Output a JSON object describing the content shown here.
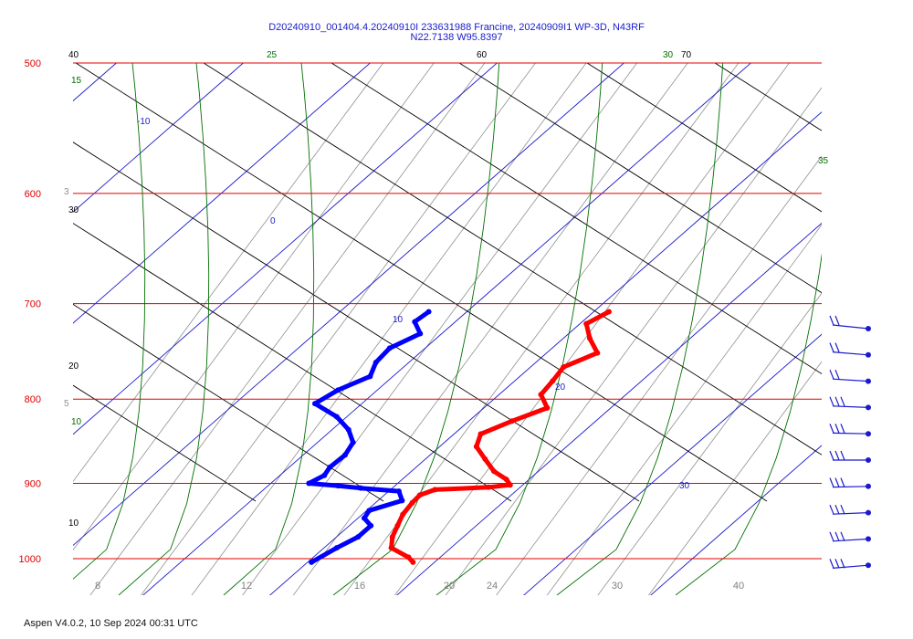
{
  "title_line1": "D20240910_001404.4.20240910I 233631988 Francine, 20240909I1 WP-3D, N43RF",
  "title_line2": "N22.7138 W95.8397",
  "footer": "Aspen V4.0.2, 10 Sep 2024  00:31 UTC",
  "colors": {
    "isobar": "#e00000",
    "isotherm": "#1a1acc",
    "dry_adiabat": "#000000",
    "moist_adiabat": "#007000",
    "mixing_ratio": "#909090",
    "temperature": "#ff0000",
    "dewpoint": "#0000ff",
    "wind_barb": "#1a1acc"
  },
  "chart_data": {
    "type": "skew-t log-p",
    "pressure_range_hpa": [
      1000,
      500
    ],
    "pressure_ticks": [
      "500",
      "600",
      "700",
      "800",
      "900",
      "1000"
    ],
    "bottom_tick_labels": [
      "8",
      "12",
      "16",
      "20",
      "24",
      "30",
      "40"
    ],
    "isotherm_labels": [
      "-10",
      "0",
      "10",
      "20",
      "30"
    ],
    "dry_adiabat_labels": [
      "40",
      "30",
      "20",
      "10",
      "60",
      "70"
    ],
    "moist_adiabat_labels": [
      "15",
      "10",
      "25",
      "30",
      "35"
    ],
    "mixing_ratio_labels": [
      "3",
      "5"
    ],
    "series": [
      {
        "name": "Temperature",
        "points": [
          [
            708,
            11.2
          ],
          [
            720,
            10.5
          ],
          [
            735,
            12.1
          ],
          [
            750,
            14.0
          ],
          [
            765,
            12.6
          ],
          [
            780,
            13.0
          ],
          [
            795,
            13.3
          ],
          [
            810,
            15.0
          ],
          [
            825,
            13.4
          ],
          [
            840,
            12.1
          ],
          [
            855,
            12.9
          ],
          [
            870,
            14.7
          ],
          [
            885,
            16.5
          ],
          [
            895,
            18.2
          ],
          [
            902,
            19.0
          ],
          [
            905,
            17.5
          ],
          [
            908,
            13.5
          ],
          [
            915,
            12.8
          ],
          [
            925,
            12.9
          ],
          [
            940,
            13.2
          ],
          [
            955,
            13.8
          ],
          [
            970,
            14.4
          ],
          [
            985,
            15.3
          ],
          [
            998,
            17.5
          ],
          [
            1005,
            18.3
          ]
        ]
      },
      {
        "name": "Dewpoint",
        "points": [
          [
            708,
            -3.0
          ],
          [
            718,
            -3.2
          ],
          [
            730,
            -1.7
          ],
          [
            745,
            -2.8
          ],
          [
            760,
            -2.6
          ],
          [
            775,
            -1.8
          ],
          [
            790,
            -3.1
          ],
          [
            805,
            -3.7
          ],
          [
            820,
            -0.8
          ],
          [
            835,
            1.3
          ],
          [
            850,
            2.8
          ],
          [
            865,
            3.3
          ],
          [
            880,
            3.2
          ],
          [
            890,
            3.5
          ],
          [
            900,
            3.0
          ],
          [
            903,
            5.5
          ],
          [
            906,
            7.5
          ],
          [
            910,
            10.8
          ],
          [
            922,
            11.9
          ],
          [
            935,
            10.2
          ],
          [
            945,
            10.5
          ],
          [
            955,
            11.7
          ],
          [
            970,
            11.7
          ],
          [
            985,
            11.0
          ],
          [
            1005,
            10.3
          ]
        ]
      }
    ],
    "wind_barbs_pressure_hpa": [
      720,
      760,
      800,
      840,
      875,
      915,
      950,
      990,
      1025,
      1060
    ]
  }
}
